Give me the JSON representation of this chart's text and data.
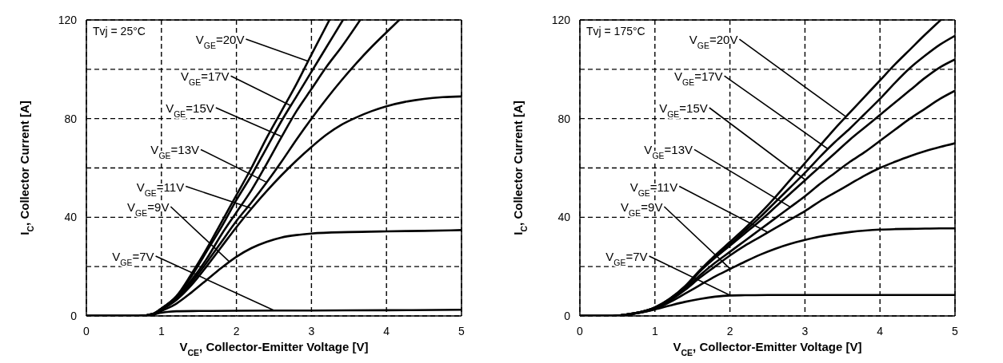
{
  "chart_data": [
    {
      "type": "line",
      "xlabel": "V$_{CE}$, Collector-Emitter Voltage [V]",
      "ylabel": "I$_{C}$, Collector Current [A]",
      "annotations": [
        "Tvj = 25°C",
        {
          "text": "V$_{GE}$=20V",
          "x": 2.95,
          "y": 103
        },
        {
          "text": "V$_{GE}$=17V",
          "x": 2.72,
          "y": 85
        },
        {
          "text": "V$_{GE}$=15V",
          "x": 2.6,
          "y": 72.5
        },
        {
          "text": "V$_{GE}$=13V",
          "x": 2.4,
          "y": 54
        },
        {
          "text": "V$_{GE}$=11V",
          "x": 2.2,
          "y": 43.5
        },
        {
          "text": "V$_{GE}$=9V",
          "x": 1.9,
          "y": 22
        },
        {
          "text": "V$_{GE}$=7V",
          "x": 2.5,
          "y": 2.2
        }
      ],
      "xlim": [
        0,
        5
      ],
      "xticks": [
        0,
        1,
        2,
        3,
        4,
        5
      ],
      "ylim": [
        0,
        120
      ],
      "yticks": [
        0,
        {
          "value": 20,
          "label": null
        },
        40,
        {
          "value": 60,
          "label": null
        },
        80,
        {
          "value": 100,
          "label": null
        },
        120
      ],
      "grid": true,
      "marker": "none",
      "series": [
        {
          "color": "#000000",
          "x": [
            0,
            0.7,
            0.9,
            1,
            1.2,
            1.4,
            1.6,
            1.8,
            2,
            2.2,
            2.4,
            2.6,
            2.8,
            3,
            3.24
          ],
          "values": [
            0,
            0,
            1,
            3,
            8,
            17,
            27,
            38,
            49,
            60,
            72,
            83,
            94,
            106,
            120
          ]
        },
        {
          "color": "#000000",
          "x": [
            0,
            0.7,
            0.9,
            1,
            1.2,
            1.4,
            1.6,
            1.8,
            2,
            2.2,
            2.4,
            2.6,
            2.8,
            3,
            3.2,
            3.42
          ],
          "values": [
            0,
            0,
            1,
            3,
            8,
            16,
            26,
            36,
            47,
            57,
            68,
            79,
            89,
            99,
            109,
            120
          ]
        },
        {
          "color": "#000000",
          "x": [
            0,
            0.7,
            0.9,
            1,
            1.2,
            1.4,
            1.6,
            1.8,
            2,
            2.2,
            2.4,
            2.6,
            2.8,
            3,
            3.2,
            3.4,
            3.65
          ],
          "values": [
            0,
            0,
            1,
            3,
            7.5,
            14.5,
            23,
            33,
            42,
            51,
            61.5,
            72.5,
            83,
            92,
            101,
            109,
            120
          ]
        },
        {
          "color": "#000000",
          "x": [
            0,
            0.7,
            0.9,
            1,
            1.2,
            1.4,
            1.6,
            1.8,
            2,
            2.2,
            2.4,
            2.6,
            2.8,
            3,
            3.2,
            3.4,
            3.6,
            3.8,
            4,
            4.17
          ],
          "values": [
            0,
            0,
            0.8,
            2.8,
            7,
            13.5,
            21.5,
            30,
            38.5,
            46,
            54,
            62.5,
            71.5,
            80,
            88,
            95.5,
            102.5,
            109,
            115,
            120
          ]
        },
        {
          "color": "#000000",
          "x": [
            0,
            0.7,
            0.9,
            1,
            1.2,
            1.4,
            1.6,
            1.8,
            2,
            2.2,
            2.4,
            2.6,
            2.8,
            3,
            3.2,
            3.4,
            3.6,
            3.8,
            4,
            4.25,
            4.5,
            4.75,
            5
          ],
          "values": [
            0,
            0,
            0.7,
            2.5,
            6.5,
            12.5,
            20,
            28,
            36,
            43.5,
            50.5,
            57,
            63,
            68.5,
            73.5,
            77.5,
            80.5,
            83,
            85,
            86.8,
            88,
            88.7,
            89
          ]
        },
        {
          "color": "#000000",
          "x": [
            0,
            0.7,
            0.9,
            1,
            1.2,
            1.4,
            1.6,
            1.8,
            2,
            2.2,
            2.4,
            2.6,
            2.8,
            3,
            3.5,
            4,
            4.5,
            5
          ],
          "values": [
            0,
            0,
            0.6,
            2,
            5,
            9.5,
            14.5,
            19.5,
            24,
            27.5,
            30,
            31.8,
            32.8,
            33.4,
            34,
            34.3,
            34.5,
            34.8
          ]
        },
        {
          "color": "#000000",
          "x": [
            0,
            0.7,
            0.9,
            1,
            1.1,
            1.2,
            1.5,
            2,
            3,
            4,
            5
          ],
          "values": [
            0,
            0,
            0.7,
            1.3,
            1.7,
            1.9,
            2,
            2.1,
            2.2,
            2.3,
            2.5
          ]
        }
      ]
    },
    {
      "type": "line",
      "xlabel": "V$_{CE}$, Collector-Emitter Voltage [V]",
      "ylabel": "I$_{C}$, Collector Current [A]",
      "annotations": [
        "Tvj = 175°C",
        {
          "text": "V$_{GE}$=20V",
          "x": 3.54,
          "y": 80.5
        },
        {
          "text": "V$_{GE}$=17V",
          "x": 3.3,
          "y": 67.5
        },
        {
          "text": "V$_{GE}$=15V",
          "x": 3.0,
          "y": 55
        },
        {
          "text": "V$_{GE}$=13V",
          "x": 2.8,
          "y": 44
        },
        {
          "text": "V$_{GE}$=11V",
          "x": 2.5,
          "y": 33.8
        },
        {
          "text": "V$_{GE}$=9V",
          "x": 2.0,
          "y": 19
        },
        {
          "text": "V$_{GE}$=7V",
          "x": 2.0,
          "y": 8.3
        }
      ],
      "xlim": [
        0,
        5
      ],
      "xticks": [
        0,
        1,
        2,
        3,
        4,
        5
      ],
      "ylim": [
        0,
        120
      ],
      "yticks": [
        0,
        {
          "value": 20,
          "label": null
        },
        40,
        {
          "value": 60,
          "label": null
        },
        80,
        {
          "value": 100,
          "label": null
        },
        120
      ],
      "grid": true,
      "marker": "none",
      "series": [
        {
          "color": "#000000",
          "x": [
            0,
            0.4,
            0.6,
            0.8,
            1,
            1.2,
            1.4,
            1.6,
            1.8,
            2,
            2.2,
            2.4,
            2.6,
            2.8,
            3,
            3.2,
            3.4,
            3.6,
            3.8,
            4,
            4.2,
            4.4,
            4.6,
            4.81
          ],
          "values": [
            0,
            0,
            0.5,
            1.5,
            3.5,
            7,
            12,
            18.5,
            24.5,
            30,
            35.5,
            41.5,
            48,
            55,
            62,
            69,
            76,
            82.5,
            89,
            95.5,
            102,
            108,
            114,
            120
          ]
        },
        {
          "color": "#000000",
          "x": [
            0,
            0.4,
            0.6,
            0.8,
            1,
            1.2,
            1.4,
            1.6,
            1.8,
            2,
            2.2,
            2.4,
            2.6,
            2.8,
            3,
            3.2,
            3.4,
            3.6,
            3.8,
            4,
            4.2,
            4.4,
            4.6,
            4.8,
            5
          ],
          "values": [
            0,
            0,
            0.5,
            1.5,
            3.4,
            7,
            12,
            18.5,
            24,
            29,
            34.5,
            40,
            46,
            52,
            58,
            64.5,
            70.5,
            76,
            82,
            88,
            94.5,
            100.5,
            105.5,
            110,
            113.6
          ]
        },
        {
          "color": "#000000",
          "x": [
            0,
            0.4,
            0.6,
            0.8,
            1,
            1.2,
            1.4,
            1.6,
            1.8,
            2,
            2.2,
            2.4,
            2.6,
            2.8,
            3,
            3.2,
            3.4,
            3.6,
            3.8,
            4,
            4.2,
            4.4,
            4.6,
            4.8,
            5
          ],
          "values": [
            0,
            0,
            0.5,
            1.5,
            3.3,
            6.8,
            11.5,
            18,
            23.5,
            28.5,
            33.5,
            38.5,
            44,
            49.5,
            55,
            60.5,
            66,
            71.5,
            76.5,
            81.5,
            86.5,
            91.5,
            96.5,
            100.8,
            104
          ]
        },
        {
          "color": "#000000",
          "x": [
            0,
            0.4,
            0.6,
            0.8,
            1,
            1.2,
            1.4,
            1.6,
            1.8,
            2,
            2.2,
            2.4,
            2.6,
            2.8,
            3,
            3.2,
            3.4,
            3.6,
            3.8,
            4,
            4.2,
            4.4,
            4.6,
            4.8,
            5
          ],
          "values": [
            0,
            0,
            0.5,
            1.5,
            3.2,
            6.5,
            11,
            16.5,
            21.5,
            26,
            30.5,
            35,
            39.5,
            44,
            48.5,
            53.5,
            58,
            62.5,
            66.5,
            71,
            75.5,
            80,
            84,
            88,
            91.3
          ]
        },
        {
          "color": "#000000",
          "x": [
            0,
            0.4,
            0.6,
            0.8,
            1,
            1.2,
            1.4,
            1.6,
            1.8,
            2,
            2.2,
            2.4,
            2.6,
            2.8,
            3,
            3.2,
            3.4,
            3.6,
            3.8,
            4,
            4.2,
            4.4,
            4.6,
            4.8,
            5
          ],
          "values": [
            0,
            0,
            0.5,
            1.4,
            3,
            6.2,
            10.5,
            15.5,
            20,
            24.5,
            28.5,
            32,
            35.5,
            39,
            42.5,
            46.5,
            50,
            53.5,
            57,
            60,
            62.5,
            64.8,
            66.8,
            68.5,
            70
          ]
        },
        {
          "color": "#000000",
          "x": [
            0,
            0.4,
            0.6,
            0.8,
            1,
            1.2,
            1.4,
            1.6,
            1.8,
            2,
            2.2,
            2.4,
            2.6,
            2.8,
            3,
            3.2,
            3.4,
            3.6,
            3.8,
            4,
            4.2,
            4.4,
            4.6,
            4.8,
            5
          ],
          "values": [
            0,
            0,
            0.4,
            1.3,
            2.8,
            5.6,
            9,
            12.5,
            16,
            19,
            22,
            24.8,
            27.2,
            29.2,
            30.8,
            32.2,
            33.2,
            34,
            34.6,
            35,
            35.2,
            35.3,
            35.4,
            35.5,
            35.5
          ]
        },
        {
          "color": "#000000",
          "x": [
            0,
            0.4,
            0.6,
            0.8,
            1,
            1.2,
            1.4,
            1.6,
            1.8,
            2,
            2.2,
            2.5,
            3,
            4,
            5
          ],
          "values": [
            0,
            0,
            0.4,
            1.3,
            2.6,
            4.2,
            5.7,
            6.9,
            7.8,
            8.3,
            8.4,
            8.5,
            8.5,
            8.5,
            8.5
          ]
        }
      ]
    }
  ]
}
